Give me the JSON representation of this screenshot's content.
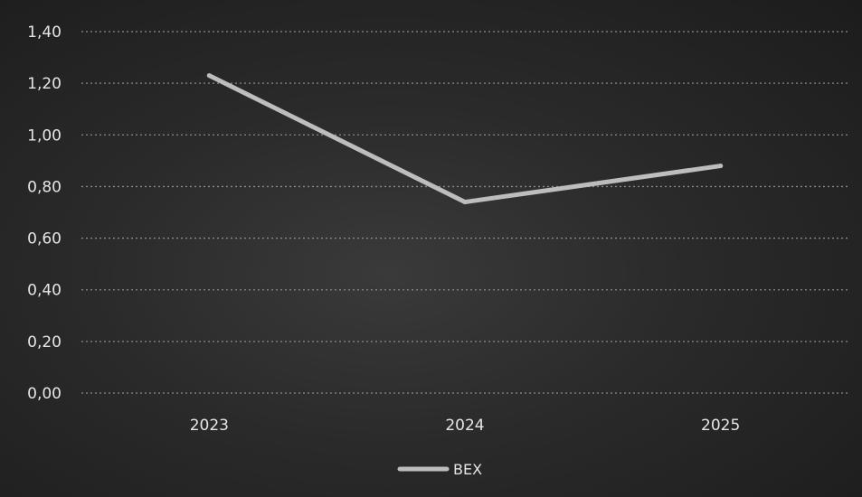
{
  "chart_data": {
    "type": "line",
    "categories": [
      "2023",
      "2024",
      "2025"
    ],
    "series": [
      {
        "name": "BEX",
        "values": [
          1.23,
          0.74,
          0.88
        ]
      }
    ],
    "y_ticks": [
      "0,00",
      "0,20",
      "0,40",
      "0,60",
      "0,80",
      "1,00",
      "1,20",
      "1,40"
    ],
    "ylim": [
      0,
      1.4
    ],
    "grid": true,
    "legend_position": "bottom",
    "colors": {
      "series_line": "#bdbdbd",
      "grid": "#8a8a8a",
      "text": "#e6e6e6"
    }
  }
}
